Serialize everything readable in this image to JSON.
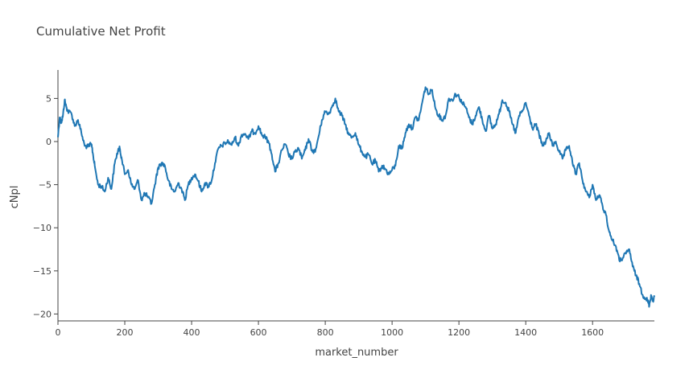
{
  "chart_data": {
    "type": "line",
    "title": "Cumulative Net Profit",
    "xlabel": "market_number",
    "ylabel": "cNpl",
    "xlim": [
      0,
      1785
    ],
    "ylim": [
      -20.8,
      8.3
    ],
    "x_ticks": [
      0,
      200,
      400,
      600,
      800,
      1000,
      1200,
      1400,
      1600
    ],
    "y_ticks": [
      5,
      0,
      -5,
      -10,
      -15,
      -20
    ],
    "y_tick_labels": [
      "5",
      "0",
      "−5",
      "−10",
      "−15",
      "−20"
    ],
    "grid": false,
    "legend": "none",
    "series": [
      {
        "color": "#1f77b4",
        "x": [
          0,
          5,
          10,
          15,
          20,
          25,
          30,
          40,
          50,
          60,
          70,
          80,
          90,
          100,
          105,
          110,
          120,
          130,
          140,
          150,
          160,
          170,
          180,
          185,
          190,
          200,
          210,
          220,
          230,
          240,
          250,
          260,
          270,
          280,
          290,
          300,
          310,
          320,
          330,
          340,
          350,
          360,
          370,
          380,
          390,
          400,
          410,
          420,
          430,
          440,
          450,
          460,
          470,
          480,
          490,
          500,
          510,
          520,
          530,
          540,
          550,
          560,
          570,
          580,
          590,
          600,
          610,
          620,
          630,
          640,
          650,
          660,
          670,
          680,
          690,
          700,
          710,
          720,
          730,
          740,
          750,
          760,
          770,
          780,
          790,
          800,
          810,
          820,
          830,
          840,
          850,
          860,
          870,
          880,
          890,
          900,
          910,
          920,
          930,
          940,
          950,
          960,
          970,
          980,
          990,
          1000,
          1010,
          1020,
          1030,
          1040,
          1050,
          1060,
          1070,
          1080,
          1090,
          1100,
          1110,
          1120,
          1130,
          1140,
          1150,
          1160,
          1170,
          1180,
          1190,
          1200,
          1210,
          1220,
          1230,
          1240,
          1250,
          1260,
          1270,
          1280,
          1290,
          1300,
          1310,
          1320,
          1330,
          1340,
          1350,
          1360,
          1370,
          1380,
          1390,
          1400,
          1410,
          1420,
          1430,
          1440,
          1450,
          1460,
          1470,
          1480,
          1490,
          1500,
          1510,
          1520,
          1530,
          1540,
          1550,
          1560,
          1570,
          1580,
          1590,
          1600,
          1610,
          1620,
          1630,
          1640,
          1650,
          1660,
          1670,
          1680,
          1690,
          1700,
          1710,
          1720,
          1730,
          1740,
          1750,
          1760,
          1765,
          1770,
          1775,
          1780,
          1785
        ],
        "y": [
          0.5,
          2.8,
          2.2,
          3.0,
          4.8,
          4.0,
          3.5,
          3.3,
          1.8,
          2.5,
          1.0,
          -0.5,
          -0.6,
          -0.3,
          -1.5,
          -2.8,
          -5.0,
          -5.2,
          -5.8,
          -4.2,
          -5.5,
          -2.5,
          -1.0,
          -0.8,
          -1.8,
          -3.8,
          -3.3,
          -5.0,
          -5.5,
          -4.5,
          -6.8,
          -6.0,
          -6.5,
          -7.2,
          -5.0,
          -3.0,
          -2.5,
          -2.8,
          -4.5,
          -5.5,
          -5.8,
          -4.8,
          -5.5,
          -6.8,
          -5.0,
          -4.2,
          -3.8,
          -4.6,
          -5.8,
          -4.8,
          -5.2,
          -4.5,
          -2.5,
          -0.8,
          -0.5,
          -0.2,
          0.0,
          -0.4,
          0.5,
          -0.5,
          0.8,
          0.9,
          0.3,
          1.2,
          1.0,
          1.8,
          0.8,
          0.5,
          0.0,
          -1.5,
          -3.5,
          -2.5,
          -1.0,
          -0.3,
          -1.5,
          -2.0,
          -1.2,
          -0.8,
          -2.0,
          -1.0,
          0.3,
          -1.0,
          -1.2,
          0.6,
          2.5,
          3.5,
          3.2,
          4.0,
          5.0,
          3.5,
          3.0,
          2.0,
          0.8,
          0.5,
          1.0,
          -0.4,
          -1.2,
          -1.8,
          -1.5,
          -2.6,
          -2.2,
          -3.5,
          -2.8,
          -3.2,
          -3.8,
          -3.3,
          -2.8,
          -0.5,
          -0.8,
          1.0,
          2.0,
          1.5,
          2.8,
          2.5,
          4.5,
          6.3,
          5.5,
          6.0,
          3.8,
          3.0,
          2.5,
          3.0,
          5.0,
          4.8,
          5.5,
          5.2,
          4.5,
          4.0,
          2.8,
          2.0,
          3.0,
          4.0,
          2.5,
          1.2,
          3.0,
          1.5,
          2.0,
          3.2,
          4.8,
          4.5,
          3.5,
          2.0,
          1.0,
          3.0,
          3.5,
          4.5,
          3.0,
          1.5,
          2.0,
          0.8,
          -0.5,
          0.0,
          1.0,
          -0.5,
          0.0,
          -1.2,
          -2.0,
          -1.0,
          -0.5,
          -2.5,
          -3.8,
          -2.5,
          -4.5,
          -5.8,
          -6.5,
          -5.0,
          -6.8,
          -6.2,
          -7.5,
          -8.5,
          -10.5,
          -11.5,
          -12.2,
          -13.8,
          -13.5,
          -13.0,
          -12.5,
          -14.5,
          -15.5,
          -16.5,
          -17.8,
          -18.2,
          -18.5,
          -19.0,
          -17.8,
          -18.5,
          -18.0
        ]
      }
    ]
  }
}
